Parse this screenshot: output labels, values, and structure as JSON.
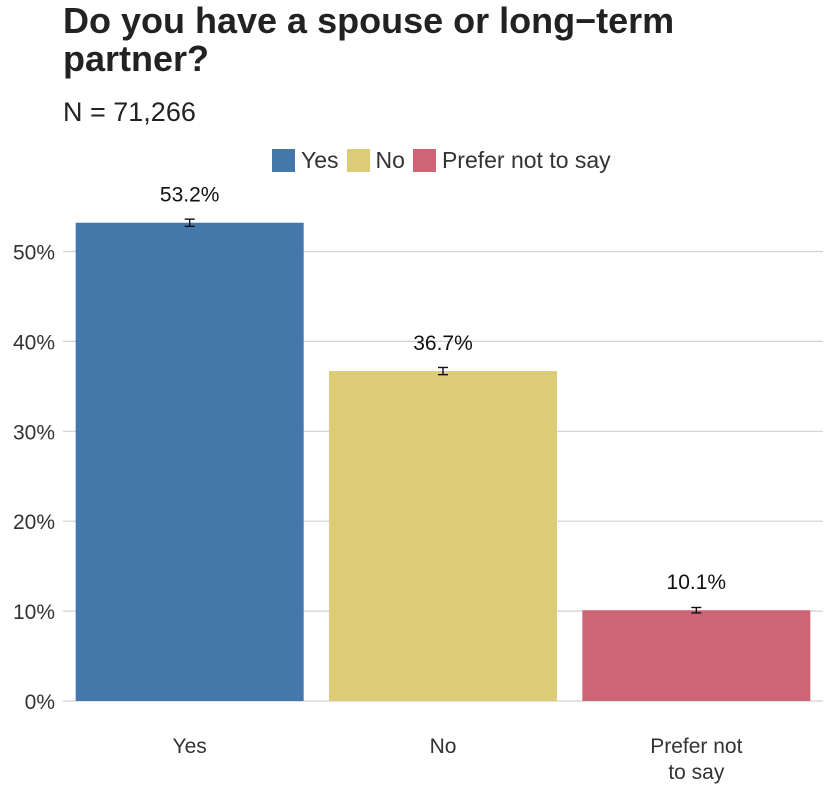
{
  "chart_data": {
    "type": "bar",
    "title": "Do you have a spouse or long−term partner?",
    "subtitle": "N = 71,266",
    "categories": [
      "Yes",
      "No",
      "Prefer not to say"
    ],
    "category_labels": [
      [
        "Yes"
      ],
      [
        "No"
      ],
      [
        "Prefer not",
        "to say"
      ]
    ],
    "values": [
      53.2,
      36.7,
      10.1
    ],
    "value_labels": [
      "53.2%",
      "36.7%",
      "10.1%"
    ],
    "error_bars": [
      [
        52.8,
        53.6
      ],
      [
        36.3,
        37.1
      ],
      [
        9.8,
        10.4
      ]
    ],
    "colors": [
      "#4477aa",
      "#ddcc77",
      "#cc6677"
    ],
    "legend": {
      "position": "top",
      "entries": [
        {
          "label": "Yes",
          "color": "#4477aa"
        },
        {
          "label": "No",
          "color": "#ddcc77"
        },
        {
          "label": "Prefer not to say",
          "color": "#cc6677"
        }
      ]
    },
    "ylim": [
      0,
      55
    ],
    "yticks": [
      0,
      10,
      20,
      30,
      40,
      50
    ],
    "ytick_labels": [
      "0%",
      "10%",
      "20%",
      "30%",
      "40%",
      "50%"
    ],
    "grid": "horizontal",
    "grid_color": "#d0d0d0"
  }
}
